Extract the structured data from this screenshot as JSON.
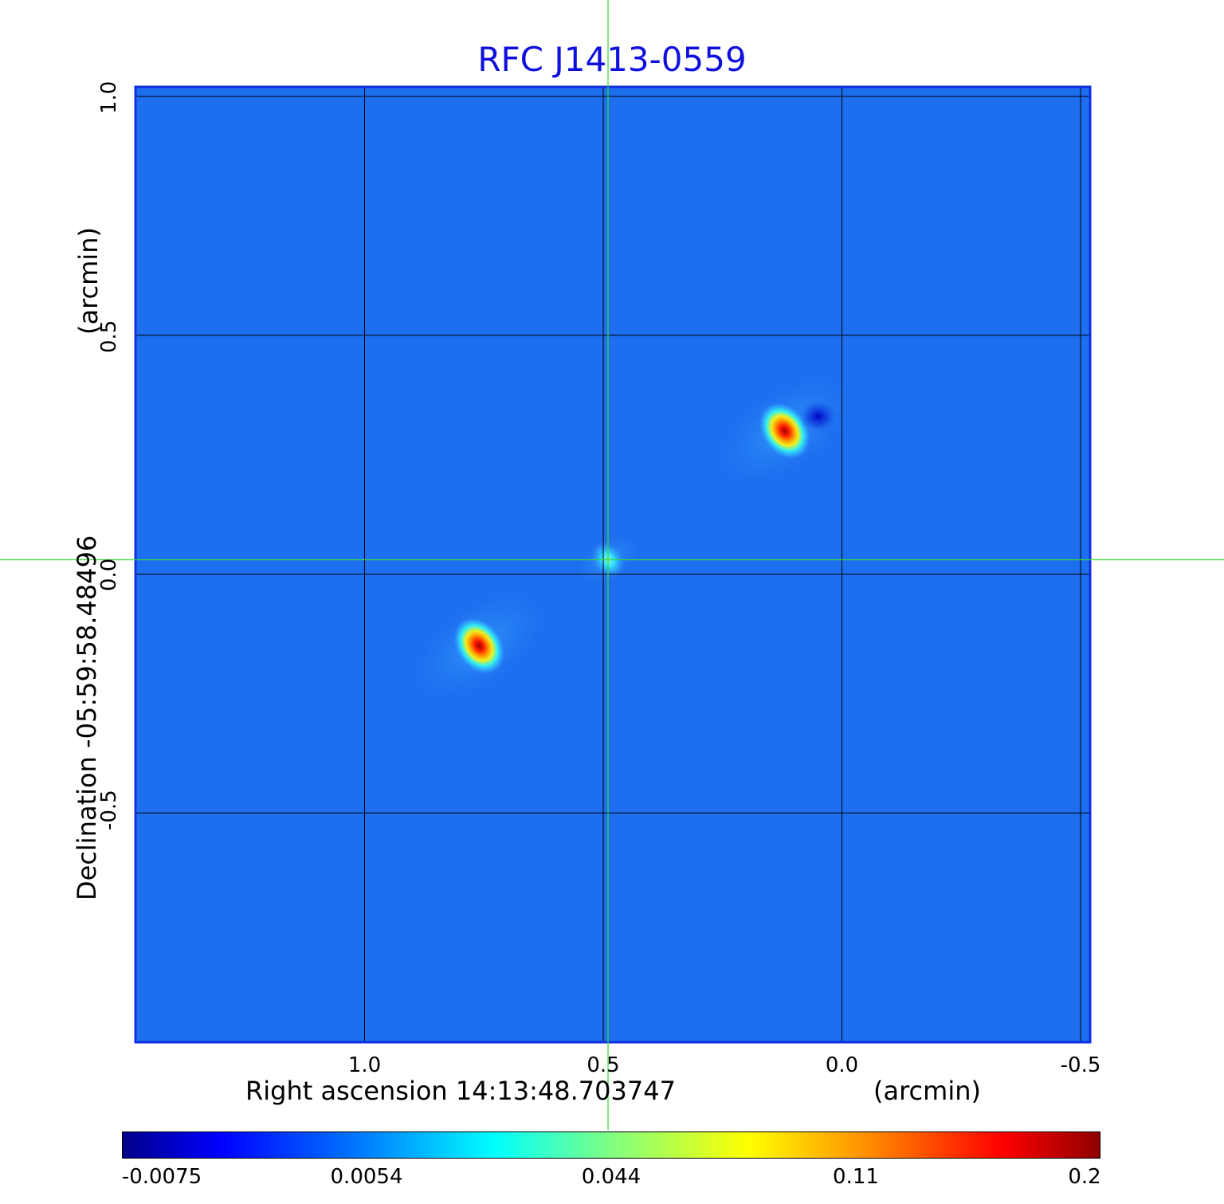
{
  "chart_data": {
    "type": "heatmap",
    "title": "RFC J1413-0559",
    "xlabel": "Right ascension  14:13:48.703747",
    "xunit": "(arcmin)",
    "ylabel": "Declination  -05:59:58.48496",
    "yunit": "(arcmin)",
    "x_ticks": [
      "1.0",
      "0.5",
      "0.0",
      "-0.5"
    ],
    "y_ticks": [
      "1.0",
      "0.5",
      "0.0",
      "-0.5"
    ],
    "x_range": [
      1.48,
      -0.52
    ],
    "y_range": [
      -0.98,
      1.02
    ],
    "grid": true,
    "crosshair": {
      "ra_offset": 0.49,
      "dec_offset": 0.03,
      "color": "#33dd33"
    },
    "colormap": "jet",
    "colorbar_ticks": [
      "-0.0075",
      "0.0054",
      "0.044",
      "0.11",
      "0.2"
    ],
    "sources": [
      {
        "ra_offset": 0.12,
        "dec_offset": 0.3,
        "peak": 0.2
      },
      {
        "ra_offset": 0.76,
        "dec_offset": -0.15,
        "peak": 0.19
      },
      {
        "ra_offset": 0.49,
        "dec_offset": 0.03,
        "peak": 0.03
      }
    ],
    "negative_spots": [
      {
        "ra_offset": 0.05,
        "dec_offset": 0.33
      }
    ]
  }
}
